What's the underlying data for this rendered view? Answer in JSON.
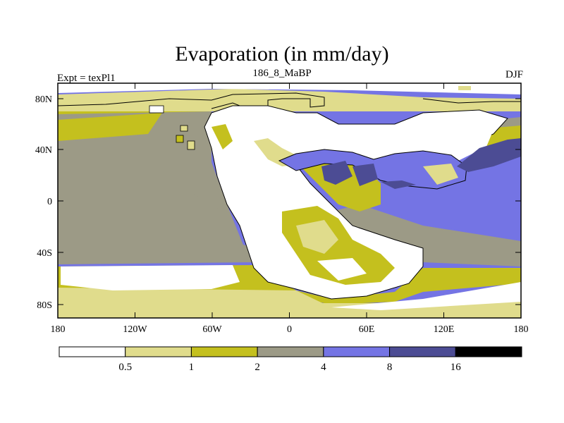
{
  "header": {
    "title": "Evaporation (in mm/day)",
    "left_label": "Expt = texPl1",
    "center_label": "186_8_MaBP",
    "right_label": "DJF"
  },
  "map": {
    "lat_ticks": [
      "80N",
      "40N",
      "0",
      "40S",
      "80S"
    ],
    "lon_ticks": [
      "180",
      "120W",
      "60W",
      "0",
      "60E",
      "120E",
      "180"
    ]
  },
  "colorbar": {
    "labels": [
      "0.5",
      "1",
      "2",
      "4",
      "8",
      "16"
    ],
    "colors": [
      "#ffffff",
      "#e0dc8c",
      "#c4c01e",
      "#9c9a86",
      "#7474e4",
      "#4c4c94",
      "#000000"
    ]
  }
}
